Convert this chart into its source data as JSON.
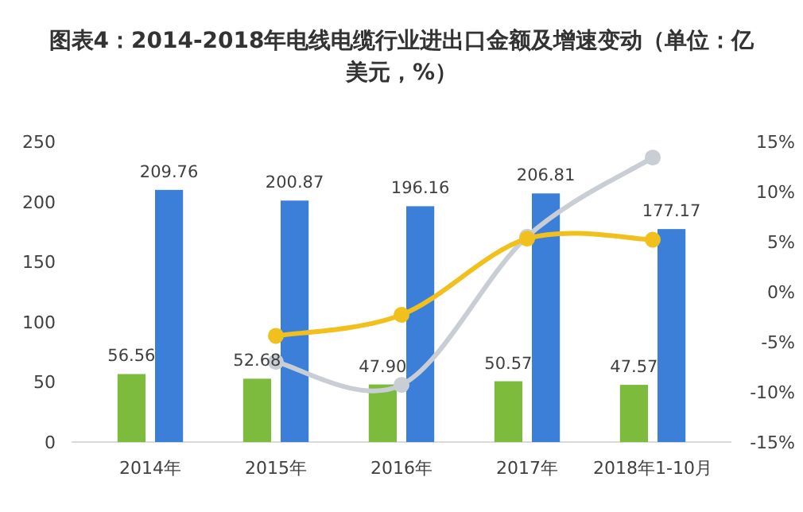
{
  "chart_data": {
    "type": "bar",
    "title": "图表4：2014-2018年电线电缆行业进出口金额及增速变动（单位：亿美元，%）",
    "categories": [
      "2014年",
      "2015年",
      "2016年",
      "2017年",
      "2018年1-10月"
    ],
    "ylim": [
      0,
      250
    ],
    "yticks": [
      0,
      50,
      100,
      150,
      200,
      250
    ],
    "y2lim": [
      -15,
      15
    ],
    "y2ticks": [
      {
        "value": -15,
        "label": "-15%"
      },
      {
        "value": -10,
        "label": "-10%"
      },
      {
        "value": -5,
        "label": "-5%"
      },
      {
        "value": 0,
        "label": "0%"
      },
      {
        "value": 5,
        "label": "5%"
      },
      {
        "value": 10,
        "label": "10%"
      },
      {
        "value": 15,
        "label": "15%"
      }
    ],
    "marker": "circle",
    "series": [
      {
        "color": "#7cbb3c",
        "values": [
          56.56,
          52.68,
          47.9,
          50.57,
          47.57
        ],
        "value_labels": [
          "56.56",
          "52.68",
          "47.90",
          "50.57",
          "47.57"
        ]
      },
      {
        "color": "#3b7fd9",
        "values": [
          209.76,
          200.87,
          196.16,
          206.81,
          177.17
        ],
        "value_labels": [
          "209.76",
          "200.87",
          "196.16",
          "206.81",
          "177.17"
        ]
      },
      {
        "type": "line",
        "axis": "y2",
        "color": "#c9cdd4",
        "values": [
          null,
          -7.0,
          -9.3,
          5.5,
          13.4
        ]
      },
      {
        "type": "line",
        "axis": "y2",
        "color": "#f2c01c",
        "values": [
          null,
          -4.4,
          -2.3,
          5.3,
          5.2
        ]
      }
    ]
  }
}
